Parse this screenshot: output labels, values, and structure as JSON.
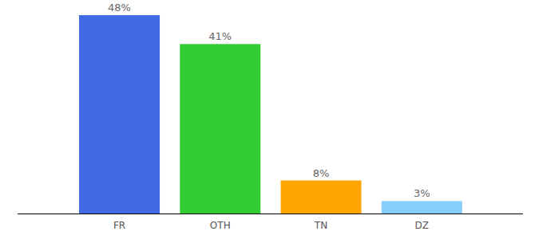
{
  "chart_data": {
    "type": "bar",
    "categories": [
      "FR",
      "OTH",
      "TN",
      "DZ"
    ],
    "values": [
      48,
      41,
      8,
      3
    ],
    "value_labels": [
      "48%",
      "41%",
      "8%",
      "3%"
    ],
    "colors": [
      "#4169e1",
      "#32cd32",
      "#ffa500",
      "#87cefa"
    ],
    "data_labels": true,
    "tick_labels": "x"
  }
}
